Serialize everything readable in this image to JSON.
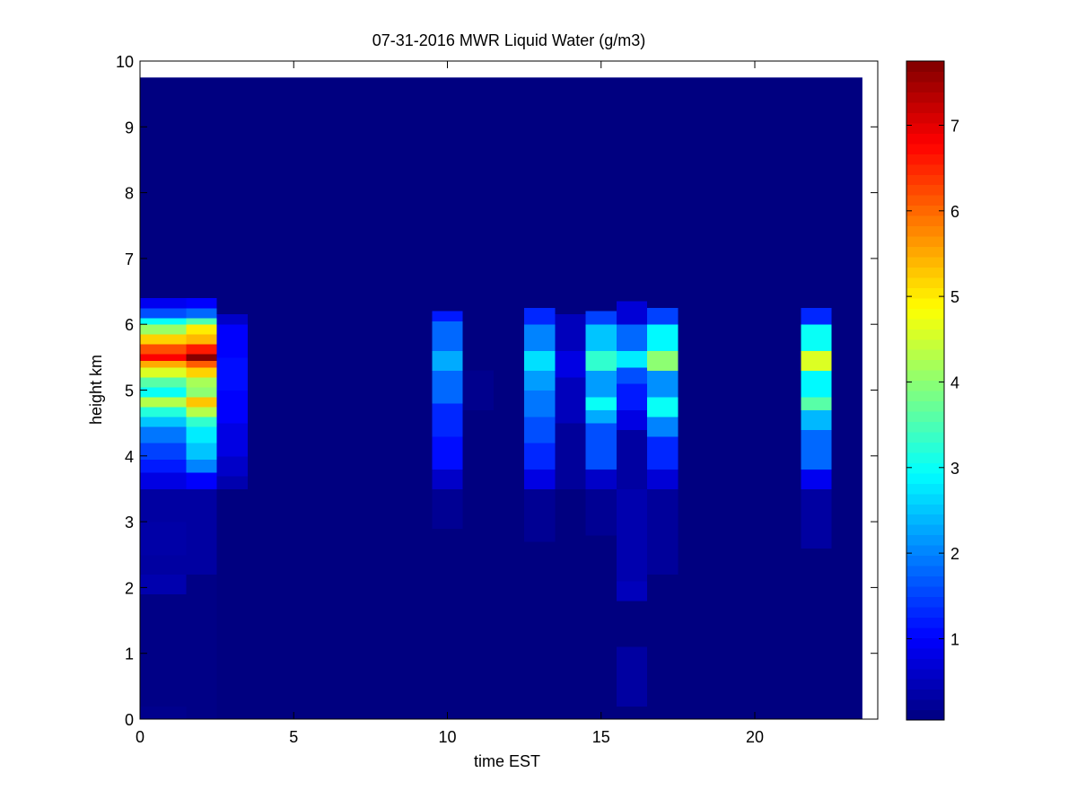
{
  "chart_data": {
    "type": "heatmap",
    "title": "07-31-2016 MWR Liquid Water (g/m3)",
    "xlabel": "time EST",
    "ylabel": "height km",
    "xlim": [
      0,
      24
    ],
    "ylim": [
      0,
      10
    ],
    "xticks": [
      "0",
      "5",
      "10",
      "15",
      "20"
    ],
    "yticks": [
      "0",
      "1",
      "2",
      "3",
      "4",
      "5",
      "6",
      "7",
      "8",
      "9",
      "10"
    ],
    "colorbar": {
      "colormap": "jet",
      "range": [
        0.05,
        7.75
      ],
      "ticks": [
        "1",
        "2",
        "3",
        "4",
        "5",
        "6",
        "7"
      ]
    },
    "data_extent": {
      "x": [
        0,
        23.5
      ],
      "y": [
        0,
        9.75
      ]
    },
    "background_value": 0.05,
    "columns": [
      {
        "x_range": [
          0,
          1.5
        ],
        "cells": [
          {
            "y": [
              0,
              0.2
            ],
            "v": 0.15
          },
          {
            "y": [
              0.2,
              1.9
            ],
            "v": 0.1
          },
          {
            "y": [
              1.9,
              2.2
            ],
            "v": 0.4
          },
          {
            "y": [
              2.2,
              2.5
            ],
            "v": 0.3
          },
          {
            "y": [
              2.5,
              3.0
            ],
            "v": 0.35
          },
          {
            "y": [
              3.0,
              3.5
            ],
            "v": 0.3
          },
          {
            "y": [
              3.5,
              3.75
            ],
            "v": 0.8
          },
          {
            "y": [
              3.75,
              3.95
            ],
            "v": 1.2
          },
          {
            "y": [
              3.95,
              4.2
            ],
            "v": 1.5
          },
          {
            "y": [
              4.2,
              4.45
            ],
            "v": 1.9
          },
          {
            "y": [
              4.45,
              4.6
            ],
            "v": 2.5
          },
          {
            "y": [
              4.6,
              4.75
            ],
            "v": 3.2
          },
          {
            "y": [
              4.75,
              4.9
            ],
            "v": 4.3
          },
          {
            "y": [
              4.9,
              5.05
            ],
            "v": 3.0
          },
          {
            "y": [
              5.05,
              5.2
            ],
            "v": 3.6
          },
          {
            "y": [
              5.2,
              5.35
            ],
            "v": 4.6
          },
          {
            "y": [
              5.35,
              5.45
            ],
            "v": 5.5
          },
          {
            "y": [
              5.45,
              5.55
            ],
            "v": 6.8
          },
          {
            "y": [
              5.55,
              5.7
            ],
            "v": 6.2
          },
          {
            "y": [
              5.7,
              5.85
            ],
            "v": 5.2
          },
          {
            "y": [
              5.85,
              6.0
            ],
            "v": 4.1
          },
          {
            "y": [
              6.0,
              6.1
            ],
            "v": 3.0
          },
          {
            "y": [
              6.1,
              6.25
            ],
            "v": 1.6
          },
          {
            "y": [
              6.25,
              6.4
            ],
            "v": 0.9
          }
        ]
      },
      {
        "x_range": [
          1.5,
          2.5
        ],
        "cells": [
          {
            "y": [
              0,
              2.2
            ],
            "v": 0.1
          },
          {
            "y": [
              2.2,
              3.5
            ],
            "v": 0.3
          },
          {
            "y": [
              3.5,
              3.75
            ],
            "v": 1.0
          },
          {
            "y": [
              3.75,
              3.95
            ],
            "v": 2.0
          },
          {
            "y": [
              3.95,
              4.2
            ],
            "v": 2.5
          },
          {
            "y": [
              4.2,
              4.45
            ],
            "v": 2.8
          },
          {
            "y": [
              4.45,
              4.6
            ],
            "v": 3.3
          },
          {
            "y": [
              4.6,
              4.75
            ],
            "v": 4.3
          },
          {
            "y": [
              4.75,
              4.9
            ],
            "v": 5.3
          },
          {
            "y": [
              4.9,
              5.05
            ],
            "v": 4.0
          },
          {
            "y": [
              5.05,
              5.2
            ],
            "v": 4.2
          },
          {
            "y": [
              5.2,
              5.35
            ],
            "v": 5.2
          },
          {
            "y": [
              5.35,
              5.45
            ],
            "v": 6.1
          },
          {
            "y": [
              5.45,
              5.55
            ],
            "v": 7.7
          },
          {
            "y": [
              5.55,
              5.7
            ],
            "v": 6.6
          },
          {
            "y": [
              5.7,
              5.85
            ],
            "v": 5.4
          },
          {
            "y": [
              5.85,
              6.0
            ],
            "v": 5.0
          },
          {
            "y": [
              6.0,
              6.1
            ],
            "v": 3.5
          },
          {
            "y": [
              6.1,
              6.25
            ],
            "v": 1.8
          },
          {
            "y": [
              6.25,
              6.4
            ],
            "v": 1.0
          }
        ]
      },
      {
        "x_range": [
          2.5,
          3.5
        ],
        "cells": [
          {
            "y": [
              3.5,
              3.7
            ],
            "v": 0.4
          },
          {
            "y": [
              3.7,
              4.0
            ],
            "v": 0.6
          },
          {
            "y": [
              4.0,
              4.5
            ],
            "v": 0.8
          },
          {
            "y": [
              4.5,
              5.0
            ],
            "v": 1.0
          },
          {
            "y": [
              5.0,
              5.5
            ],
            "v": 1.1
          },
          {
            "y": [
              5.5,
              6.0
            ],
            "v": 1.0
          },
          {
            "y": [
              6.0,
              6.15
            ],
            "v": 0.6
          }
        ]
      },
      {
        "x_range": [
          9.5,
          10.5
        ],
        "cells": [
          {
            "y": [
              2.9,
              3.5
            ],
            "v": 0.2
          },
          {
            "y": [
              3.5,
              3.8
            ],
            "v": 0.6
          },
          {
            "y": [
              3.8,
              4.3
            ],
            "v": 1.1
          },
          {
            "y": [
              4.3,
              4.8
            ],
            "v": 1.3
          },
          {
            "y": [
              4.8,
              5.3
            ],
            "v": 1.8
          },
          {
            "y": [
              5.3,
              5.6
            ],
            "v": 2.3
          },
          {
            "y": [
              5.6,
              6.05
            ],
            "v": 1.8
          },
          {
            "y": [
              6.05,
              6.2
            ],
            "v": 1.2
          }
        ]
      },
      {
        "x_range": [
          10.5,
          11.5
        ],
        "cells": [
          {
            "y": [
              4.7,
              5.3
            ],
            "v": 0.15
          }
        ]
      },
      {
        "x_range": [
          12.5,
          13.5
        ],
        "cells": [
          {
            "y": [
              2.7,
              3.5
            ],
            "v": 0.2
          },
          {
            "y": [
              3.5,
              3.8
            ],
            "v": 0.8
          },
          {
            "y": [
              3.8,
              4.2
            ],
            "v": 1.3
          },
          {
            "y": [
              4.2,
              4.6
            ],
            "v": 1.6
          },
          {
            "y": [
              4.6,
              5.0
            ],
            "v": 1.9
          },
          {
            "y": [
              5.0,
              5.3
            ],
            "v": 2.2
          },
          {
            "y": [
              5.3,
              5.6
            ],
            "v": 2.7
          },
          {
            "y": [
              5.6,
              6.0
            ],
            "v": 2.0
          },
          {
            "y": [
              6.0,
              6.25
            ],
            "v": 1.3
          }
        ]
      },
      {
        "x_range": [
          13.5,
          14.5
        ],
        "cells": [
          {
            "y": [
              3.5,
              4.5
            ],
            "v": 0.25
          },
          {
            "y": [
              4.5,
              5.2
            ],
            "v": 0.5
          },
          {
            "y": [
              5.2,
              5.6
            ],
            "v": 0.8
          },
          {
            "y": [
              5.6,
              6.15
            ],
            "v": 0.5
          }
        ]
      },
      {
        "x_range": [
          14.5,
          15.5
        ],
        "cells": [
          {
            "y": [
              2.8,
              3.5
            ],
            "v": 0.2
          },
          {
            "y": [
              3.5,
              3.8
            ],
            "v": 0.6
          },
          {
            "y": [
              3.8,
              4.5
            ],
            "v": 1.6
          },
          {
            "y": [
              4.5,
              4.7
            ],
            "v": 2.3
          },
          {
            "y": [
              4.7,
              4.9
            ],
            "v": 3.0
          },
          {
            "y": [
              4.9,
              5.3
            ],
            "v": 2.2
          },
          {
            "y": [
              5.3,
              5.6
            ],
            "v": 3.3
          },
          {
            "y": [
              5.6,
              6.0
            ],
            "v": 2.5
          },
          {
            "y": [
              6.0,
              6.2
            ],
            "v": 1.5
          }
        ]
      },
      {
        "x_range": [
          15.5,
          16.5
        ],
        "cells": [
          {
            "y": [
              0.2,
              1.1
            ],
            "v": 0.3
          },
          {
            "y": [
              1.8,
              2.1
            ],
            "v": 0.5
          },
          {
            "y": [
              2.1,
              3.5
            ],
            "v": 0.4
          },
          {
            "y": [
              3.5,
              4.4
            ],
            "v": 0.3
          },
          {
            "y": [
              4.4,
              4.7
            ],
            "v": 0.8
          },
          {
            "y": [
              4.7,
              5.1
            ],
            "v": 1.2
          },
          {
            "y": [
              5.1,
              5.35
            ],
            "v": 1.6
          },
          {
            "y": [
              5.35,
              5.6
            ],
            "v": 2.8
          },
          {
            "y": [
              5.6,
              6.0
            ],
            "v": 1.8
          },
          {
            "y": [
              6.0,
              6.35
            ],
            "v": 0.7
          }
        ]
      },
      {
        "x_range": [
          16.5,
          17.5
        ],
        "cells": [
          {
            "y": [
              2.2,
              3.5
            ],
            "v": 0.25
          },
          {
            "y": [
              3.5,
              3.8
            ],
            "v": 0.7
          },
          {
            "y": [
              3.8,
              4.3
            ],
            "v": 1.3
          },
          {
            "y": [
              4.3,
              4.6
            ],
            "v": 2.0
          },
          {
            "y": [
              4.6,
              4.9
            ],
            "v": 3.0
          },
          {
            "y": [
              4.9,
              5.3
            ],
            "v": 2.1
          },
          {
            "y": [
              5.3,
              5.6
            ],
            "v": 4.0
          },
          {
            "y": [
              5.6,
              6.0
            ],
            "v": 2.9
          },
          {
            "y": [
              6.0,
              6.25
            ],
            "v": 1.5
          }
        ]
      },
      {
        "x_range": [
          21.5,
          22.5
        ],
        "cells": [
          {
            "y": [
              2.6,
              3.5
            ],
            "v": 0.3
          },
          {
            "y": [
              3.5,
              3.8
            ],
            "v": 0.9
          },
          {
            "y": [
              3.8,
              4.4
            ],
            "v": 1.8
          },
          {
            "y": [
              4.4,
              4.7
            ],
            "v": 2.4
          },
          {
            "y": [
              4.7,
              4.9
            ],
            "v": 3.6
          },
          {
            "y": [
              4.9,
              5.3
            ],
            "v": 2.9
          },
          {
            "y": [
              5.3,
              5.6
            ],
            "v": 4.6
          },
          {
            "y": [
              5.6,
              6.0
            ],
            "v": 3.0
          },
          {
            "y": [
              6.0,
              6.25
            ],
            "v": 1.3
          }
        ]
      }
    ]
  }
}
